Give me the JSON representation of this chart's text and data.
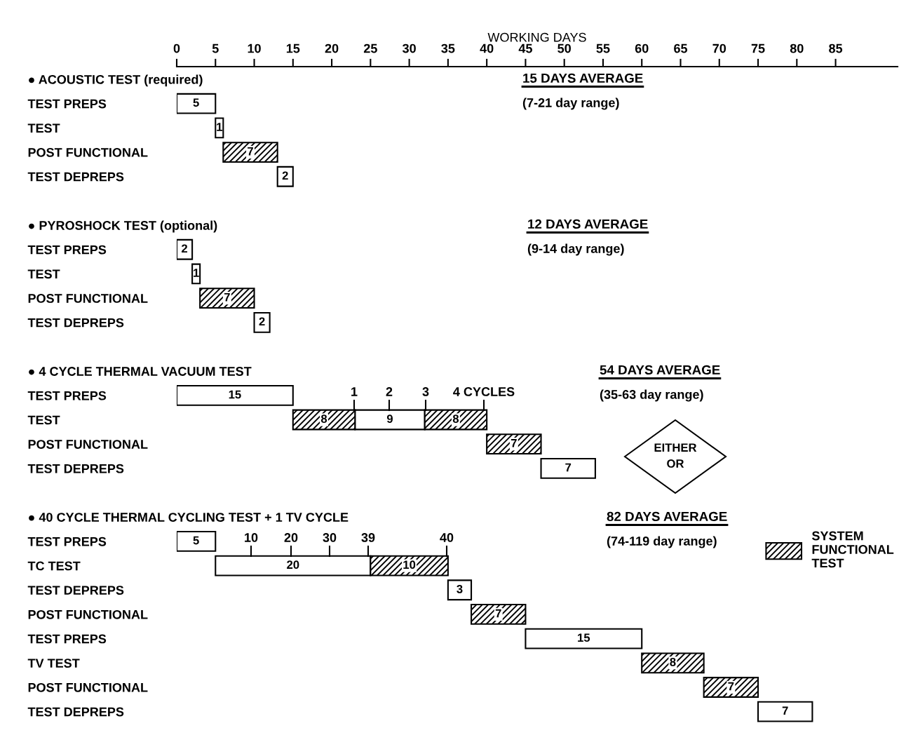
{
  "chart_data": {
    "type": "bar",
    "orientation": "horizontal",
    "xlabel": "WORKING DAYS",
    "categories": [
      "● ACOUSTIC TEST (required)",
      "TEST PREPS",
      "TEST",
      "POST FUNCTIONAL",
      "TEST DEPREPS",
      null,
      "● PYROSHOCK TEST (optional)",
      "TEST PREPS",
      "TEST",
      "POST FUNCTIONAL",
      "TEST DEPREPS",
      null,
      "● 4 CYCLE THERMAL VACUUM TEST",
      "TEST PREPS",
      "TEST",
      "POST FUNCTIONAL",
      "TEST DEPREPS",
      null,
      "● 40 CYCLE THERMAL CYCLING TEST + 1 TV CYCLE",
      "TEST PREPS",
      "TC TEST",
      "TEST DEPREPS",
      "POST FUNCTIONAL",
      "TEST PREPS",
      "TV TEST",
      "POST FUNCTIONAL",
      "TEST DEPREPS"
    ],
    "series": [
      {
        "color": "#ffffff",
        "values": [
          null,
          5,
          1,
          null,
          2,
          null,
          null,
          2,
          1,
          null,
          2,
          null,
          null,
          15,
          9,
          null,
          7,
          null,
          null,
          5,
          20,
          3,
          null,
          15,
          null,
          null,
          7
        ],
        "base": [
          null,
          0,
          5,
          null,
          13,
          null,
          null,
          0,
          2,
          null,
          10,
          null,
          null,
          0,
          23,
          null,
          47,
          null,
          null,
          0,
          5,
          35,
          null,
          45,
          null,
          null,
          75
        ]
      },
      {
        "name": "SYSTEM FUNCTIONAL TEST",
        "color": "#000000",
        "values": [
          null,
          null,
          null,
          7,
          null,
          null,
          null,
          null,
          null,
          7,
          null,
          null,
          null,
          null,
          8,
          7,
          null,
          null,
          null,
          null,
          10,
          null,
          7,
          null,
          8,
          7,
          null
        ],
        "base": [
          null,
          null,
          null,
          6,
          null,
          null,
          null,
          null,
          null,
          3,
          null,
          null,
          null,
          null,
          15,
          40,
          null,
          null,
          null,
          null,
          25,
          null,
          38,
          null,
          60,
          68,
          null
        ]
      },
      {
        "color": "#000000",
        "values": [
          null,
          null,
          null,
          null,
          null,
          null,
          null,
          null,
          null,
          null,
          null,
          null,
          null,
          null,
          8,
          null,
          null,
          null,
          null,
          null,
          null,
          null,
          null,
          null,
          null,
          null,
          null
        ],
        "base": [
          null,
          null,
          null,
          null,
          null,
          null,
          null,
          null,
          null,
          null,
          null,
          null,
          null,
          null,
          32,
          null,
          null,
          null,
          null,
          null,
          null,
          null,
          null,
          null,
          null,
          null,
          null
        ]
      }
    ],
    "xlim": [
      0,
      93
    ],
    "xticks": [
      0,
      5,
      10,
      15,
      20,
      25,
      30,
      35,
      40,
      45,
      50,
      55,
      60,
      65,
      70,
      75,
      80,
      85
    ],
    "data_labels": true,
    "grid": false,
    "legend": "right",
    "annotations": [
      "15 DAYS AVERAGE",
      "(7-21 day range)",
      "12 DAYS AVERAGE",
      "(9-14 day range)",
      "54 DAYS AVERAGE",
      "(35-63 day range)",
      "1",
      "2",
      "3",
      "4 CYCLES",
      "EITHER\nOR",
      "82 DAYS AVERAGE",
      "(74-119 day range)",
      "10",
      "20",
      "30",
      "39",
      "40"
    ]
  }
}
